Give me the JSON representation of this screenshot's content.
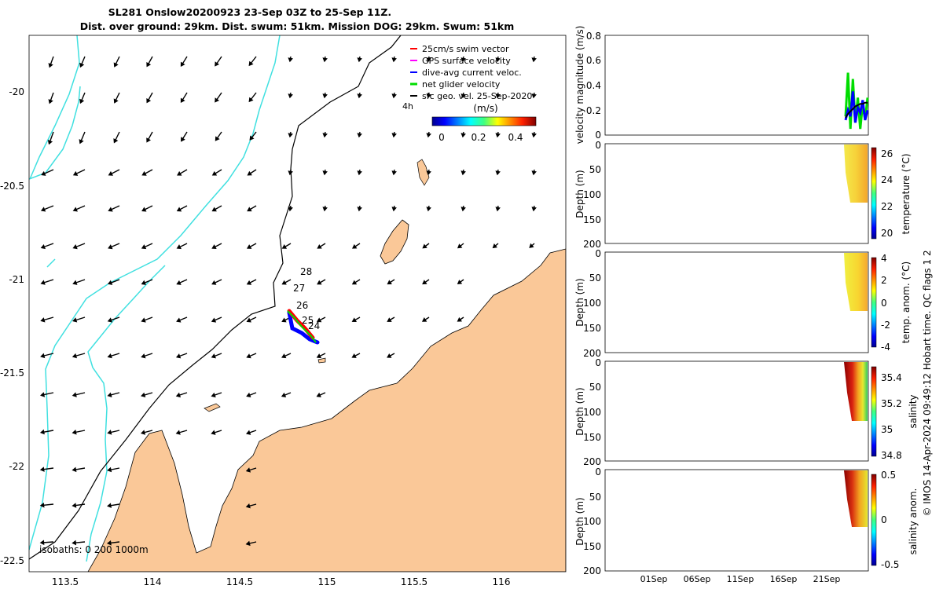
{
  "title": {
    "line1": "SL281 Onslow20200923 23-Sep 03Z to 25-Sep 11Z.",
    "line2": "Dist. over ground: 29km. Dist. swum: 51km. Mission DOG: 29km. Swum: 51km"
  },
  "map": {
    "xticks": [
      "113.5",
      "114",
      "114.5",
      "115",
      "115.5",
      "116"
    ],
    "yticks": [
      "-20",
      "-20.5",
      "-21",
      "-21.5",
      "-22",
      "-22.5"
    ],
    "legend": [
      {
        "label": "25cm/s swim vector",
        "color": "#ff0000"
      },
      {
        "label": "GPS surface velocity",
        "color": "#ff00ff"
      },
      {
        "label": "dive-avg current veloc.",
        "color": "#0000ff"
      },
      {
        "label": "net glider velocity",
        "color": "#00dd00"
      },
      {
        "label": "sfc geo. vel. 25-Sep-2020",
        "color": "#000000"
      }
    ],
    "legend_note": "4h",
    "colorbar_label": "(m/s)",
    "colorbar_ticks": [
      "0",
      "0.2",
      "0.4"
    ],
    "day_labels": [
      "28",
      "27",
      "26",
      "25",
      "24"
    ],
    "isobaths_label": "isobaths: 0   200  1000m",
    "land_color": "#fac898",
    "isobath_1000_color": "#40e0e0"
  },
  "chart_data": [
    {
      "type": "line",
      "ylabel": "velocity magnitude (m/s)",
      "ylim": [
        0,
        0.8
      ],
      "yticks": [
        "0",
        "0.2",
        "0.4",
        "0.6",
        "0.8"
      ],
      "series": [
        {
          "color": "#00dd00",
          "values": [
            0.15,
            0.5,
            0.05,
            0.45,
            0.1,
            0.3,
            0.05,
            0.25,
            0.12,
            0.3
          ]
        },
        {
          "color": "#0000ff",
          "values": [
            0.12,
            0.2,
            0.15,
            0.35,
            0.1,
            0.22,
            0.18,
            0.28,
            0.12,
            0.2
          ]
        },
        {
          "color": "#000000",
          "values": [
            0.14,
            0.17,
            0.19,
            0.21,
            0.23,
            0.24,
            0.25,
            0.25,
            0.26,
            0.26
          ]
        }
      ]
    },
    {
      "type": "heatmap",
      "ylabel": "Depth (m)",
      "yticks": [
        "0",
        "50",
        "100",
        "150",
        "200"
      ],
      "colorbar_label": "temperature (°C)",
      "colorbar_ticks": [
        "20",
        "22",
        "24",
        "26"
      ]
    },
    {
      "type": "heatmap",
      "ylabel": "Depth (m)",
      "yticks": [
        "0",
        "50",
        "100",
        "150",
        "200"
      ],
      "colorbar_label": "temp. anom. (°C)",
      "colorbar_ticks": [
        "-4",
        "-2",
        "0",
        "2",
        "4"
      ]
    },
    {
      "type": "heatmap",
      "ylabel": "Depth (m)",
      "yticks": [
        "0",
        "50",
        "100",
        "150",
        "200"
      ],
      "colorbar_label": "salinity",
      "colorbar_ticks": [
        "34.8",
        "35",
        "35.2",
        "35.4"
      ]
    },
    {
      "type": "heatmap",
      "ylabel": "Depth (m)",
      "yticks": [
        "0",
        "50",
        "100",
        "150",
        "200"
      ],
      "colorbar_label": "salinity anom.",
      "colorbar_ticks": [
        "-0.5",
        "0",
        "0.5"
      ]
    }
  ],
  "time_ticks": [
    "01Sep",
    "06Sep",
    "11Sep",
    "16Sep",
    "21Sep"
  ],
  "footer": "© IMOS 14-Apr-2024 09:49:12 Hobart time. QC flags 1  2"
}
